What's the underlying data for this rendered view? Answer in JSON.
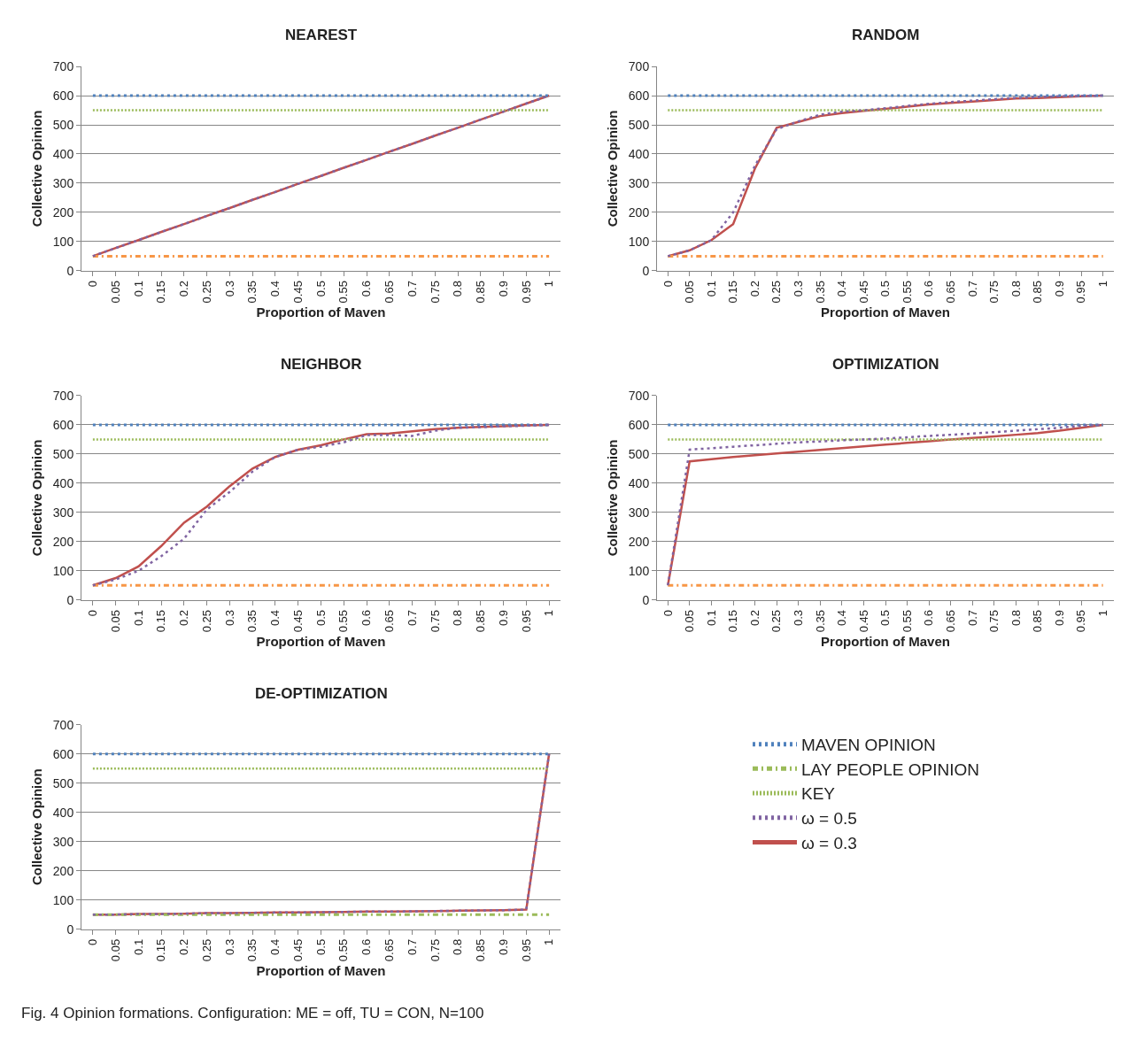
{
  "chart_data": [
    {
      "type": "line",
      "title": "NEAREST",
      "xlabel": "Proportion of Maven",
      "ylabel": "Collective Opinion",
      "categories": [
        "0",
        "0.05",
        "0.1",
        "0.15",
        "0.2",
        "0.25",
        "0.3",
        "0.35",
        "0.4",
        "0.45",
        "0.5",
        "0.55",
        "0.6",
        "0.65",
        "0.7",
        "0.75",
        "0.8",
        "0.85",
        "0.9",
        "0.95",
        "1"
      ],
      "ylim": [
        0,
        700
      ],
      "yticks": [
        0,
        100,
        200,
        300,
        400,
        500,
        600,
        700
      ],
      "grid": "y",
      "series": [
        {
          "color": "#4f81bd",
          "line_style": "dashed",
          "values": [
            600,
            600,
            600,
            600,
            600,
            600,
            600,
            600,
            600,
            600,
            600,
            600,
            600,
            600,
            600,
            600,
            600,
            600,
            600,
            600,
            600
          ]
        },
        {
          "color": "#f79646",
          "line_style": "dashdot",
          "values": [
            50,
            50,
            50,
            50,
            50,
            50,
            50,
            50,
            50,
            50,
            50,
            50,
            50,
            50,
            50,
            50,
            50,
            50,
            50,
            50,
            50
          ]
        },
        {
          "color": "#9bbb59",
          "line_style": "dotted",
          "values": [
            550,
            550,
            550,
            550,
            550,
            550,
            550,
            550,
            550,
            550,
            550,
            550,
            550,
            550,
            550,
            550,
            550,
            550,
            550,
            550,
            550
          ]
        },
        {
          "color": "#8064a2",
          "line_style": "dashed",
          "values": [
            50,
            78,
            105,
            133,
            160,
            188,
            215,
            243,
            270,
            298,
            325,
            353,
            380,
            408,
            435,
            463,
            490,
            518,
            545,
            573,
            600
          ]
        },
        {
          "color": "#c0504d",
          "line_style": "solid",
          "values": [
            50,
            78,
            105,
            133,
            160,
            188,
            215,
            243,
            270,
            298,
            325,
            353,
            380,
            408,
            435,
            463,
            490,
            518,
            545,
            573,
            600
          ]
        }
      ]
    },
    {
      "type": "line",
      "title": "RANDOM",
      "xlabel": "Proportion of Maven",
      "ylabel": "Collective Opinion",
      "categories": [
        "0",
        "0.05",
        "0.1",
        "0.15",
        "0.2",
        "0.25",
        "0.3",
        "0.35",
        "0.4",
        "0.45",
        "0.5",
        "0.55",
        "0.6",
        "0.65",
        "0.7",
        "0.75",
        "0.8",
        "0.85",
        "0.9",
        "0.95",
        "1"
      ],
      "ylim": [
        0,
        700
      ],
      "yticks": [
        0,
        100,
        200,
        300,
        400,
        500,
        600,
        700
      ],
      "grid": "y",
      "series": [
        {
          "color": "#4f81bd",
          "line_style": "dashed",
          "values": [
            600,
            600,
            600,
            600,
            600,
            600,
            600,
            600,
            600,
            600,
            600,
            600,
            600,
            600,
            600,
            600,
            600,
            600,
            600,
            600,
            600
          ]
        },
        {
          "color": "#f79646",
          "line_style": "dashdot",
          "values": [
            50,
            50,
            50,
            50,
            50,
            50,
            50,
            50,
            50,
            50,
            50,
            50,
            50,
            50,
            50,
            50,
            50,
            50,
            50,
            50,
            50
          ]
        },
        {
          "color": "#9bbb59",
          "line_style": "dotted",
          "values": [
            550,
            550,
            550,
            550,
            550,
            550,
            550,
            550,
            550,
            550,
            550,
            550,
            550,
            550,
            550,
            550,
            550,
            550,
            550,
            550,
            550
          ]
        },
        {
          "color": "#8064a2",
          "line_style": "dashed",
          "values": [
            50,
            70,
            105,
            200,
            360,
            485,
            512,
            535,
            545,
            550,
            557,
            565,
            572,
            578,
            583,
            588,
            592,
            595,
            598,
            599,
            600
          ]
        },
        {
          "color": "#c0504d",
          "line_style": "solid",
          "values": [
            50,
            70,
            105,
            160,
            350,
            490,
            510,
            530,
            540,
            548,
            555,
            562,
            570,
            575,
            580,
            585,
            590,
            592,
            595,
            598,
            600
          ]
        }
      ]
    },
    {
      "type": "line",
      "title": "NEIGHBOR",
      "xlabel": "Proportion of Maven",
      "ylabel": "Collective Opinion",
      "categories": [
        "0",
        "0.05",
        "0.1",
        "0.15",
        "0.2",
        "0.25",
        "0.3",
        "0.35",
        "0.4",
        "0.45",
        "0.5",
        "0.55",
        "0.6",
        "0.65",
        "0.7",
        "0.75",
        "0.8",
        "0.85",
        "0.9",
        "0.95",
        "1"
      ],
      "ylim": [
        0,
        700
      ],
      "yticks": [
        0,
        100,
        200,
        300,
        400,
        500,
        600,
        700
      ],
      "grid": "y",
      "series": [
        {
          "color": "#4f81bd",
          "line_style": "dashed",
          "values": [
            600,
            600,
            600,
            600,
            600,
            600,
            600,
            600,
            600,
            600,
            600,
            600,
            600,
            600,
            600,
            600,
            600,
            600,
            600,
            600,
            600
          ]
        },
        {
          "color": "#f79646",
          "line_style": "dashdot",
          "values": [
            50,
            50,
            50,
            50,
            50,
            50,
            50,
            50,
            50,
            50,
            50,
            50,
            50,
            50,
            50,
            50,
            50,
            50,
            50,
            50,
            50
          ]
        },
        {
          "color": "#9bbb59",
          "line_style": "dotted",
          "values": [
            550,
            550,
            550,
            550,
            550,
            550,
            550,
            550,
            550,
            550,
            550,
            550,
            550,
            550,
            550,
            550,
            550,
            550,
            550,
            550,
            550
          ]
        },
        {
          "color": "#8064a2",
          "line_style": "dashed",
          "values": [
            50,
            70,
            100,
            150,
            210,
            310,
            370,
            440,
            490,
            515,
            525,
            540,
            565,
            565,
            562,
            580,
            590,
            592,
            595,
            597,
            600
          ]
        },
        {
          "color": "#c0504d",
          "line_style": "solid",
          "values": [
            50,
            75,
            115,
            185,
            265,
            320,
            390,
            450,
            490,
            515,
            530,
            550,
            568,
            570,
            578,
            585,
            590,
            593,
            595,
            598,
            600
          ]
        }
      ]
    },
    {
      "type": "line",
      "title": "OPTIMIZATION",
      "xlabel": "Proportion of Maven",
      "ylabel": "Collective Opinion",
      "categories": [
        "0",
        "0.05",
        "0.1",
        "0.15",
        "0.2",
        "0.25",
        "0.3",
        "0.35",
        "0.4",
        "0.45",
        "0.5",
        "0.55",
        "0.6",
        "0.65",
        "0.7",
        "0.75",
        "0.8",
        "0.85",
        "0.9",
        "0.95",
        "1"
      ],
      "ylim": [
        0,
        700
      ],
      "yticks": [
        0,
        100,
        200,
        300,
        400,
        500,
        600,
        700
      ],
      "grid": "y",
      "series": [
        {
          "color": "#4f81bd",
          "line_style": "dashed",
          "values": [
            600,
            600,
            600,
            600,
            600,
            600,
            600,
            600,
            600,
            600,
            600,
            600,
            600,
            600,
            600,
            600,
            600,
            600,
            600,
            600,
            600
          ]
        },
        {
          "color": "#f79646",
          "line_style": "dashdot",
          "values": [
            50,
            50,
            50,
            50,
            50,
            50,
            50,
            50,
            50,
            50,
            50,
            50,
            50,
            50,
            50,
            50,
            50,
            50,
            50,
            50,
            50
          ]
        },
        {
          "color": "#9bbb59",
          "line_style": "dotted",
          "values": [
            550,
            550,
            550,
            550,
            550,
            550,
            550,
            550,
            550,
            550,
            550,
            550,
            550,
            550,
            550,
            550,
            550,
            550,
            550,
            550,
            550
          ]
        },
        {
          "color": "#8064a2",
          "line_style": "dashed",
          "values": [
            50,
            515,
            520,
            525,
            530,
            535,
            540,
            543,
            547,
            550,
            553,
            557,
            562,
            566,
            570,
            575,
            580,
            585,
            590,
            597,
            600
          ]
        },
        {
          "color": "#c0504d",
          "line_style": "solid",
          "values": [
            50,
            475,
            482,
            490,
            496,
            502,
            508,
            514,
            520,
            526,
            532,
            538,
            544,
            550,
            555,
            560,
            566,
            572,
            580,
            590,
            600
          ]
        }
      ]
    },
    {
      "type": "line",
      "title": "DE-OPTIMIZATION",
      "xlabel": "Proportion of Maven",
      "ylabel": "Collective Opinion",
      "categories": [
        "0",
        "0.05",
        "0.1",
        "0.15",
        "0.2",
        "0.25",
        "0.3",
        "0.35",
        "0.4",
        "0.45",
        "0.5",
        "0.55",
        "0.6",
        "0.65",
        "0.7",
        "0.75",
        "0.8",
        "0.85",
        "0.9",
        "0.95",
        "1"
      ],
      "ylim": [
        0,
        700
      ],
      "yticks": [
        0,
        100,
        200,
        300,
        400,
        500,
        600,
        700
      ],
      "grid": "y",
      "legend": "right",
      "annotations": [
        "Fig. 4 Opinion formations. Configuration: ME = off, TU = CON, N=100"
      ],
      "series": [
        {
          "name": "MAVEN OPINION",
          "color": "#4f81bd",
          "line_style": "dashed",
          "values": [
            600,
            600,
            600,
            600,
            600,
            600,
            600,
            600,
            600,
            600,
            600,
            600,
            600,
            600,
            600,
            600,
            600,
            600,
            600,
            600,
            600
          ]
        },
        {
          "name": "LAY PEOPLE OPINION",
          "color": "#9bbb59",
          "line_style": "dashdot",
          "values": [
            50,
            50,
            50,
            50,
            50,
            50,
            50,
            50,
            50,
            50,
            50,
            50,
            50,
            50,
            50,
            50,
            50,
            50,
            50,
            50,
            50
          ]
        },
        {
          "name": "KEY",
          "color": "#9bbb59",
          "line_style": "dotted",
          "values": [
            550,
            550,
            550,
            550,
            550,
            550,
            550,
            550,
            550,
            550,
            550,
            550,
            550,
            550,
            550,
            550,
            550,
            550,
            550,
            550,
            550
          ]
        },
        {
          "name": "ω = 0.5",
          "color": "#8064a2",
          "line_style": "dashed",
          "values": [
            50,
            50,
            52,
            52,
            53,
            55,
            55,
            56,
            57,
            57,
            58,
            59,
            60,
            60,
            61,
            62,
            63,
            64,
            65,
            67,
            600
          ]
        },
        {
          "name": "ω = 0.3",
          "color": "#c0504d",
          "line_style": "solid",
          "values": [
            50,
            50,
            52,
            52,
            53,
            55,
            55,
            56,
            57,
            57,
            58,
            59,
            60,
            60,
            61,
            62,
            63,
            64,
            65,
            67,
            600
          ]
        }
      ]
    }
  ]
}
